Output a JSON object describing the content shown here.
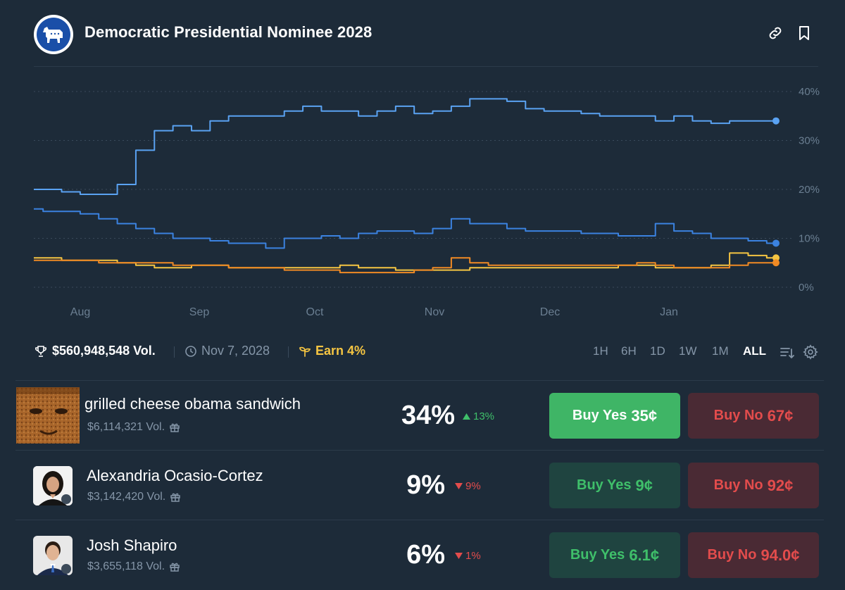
{
  "header": {
    "title": "Democratic Presidential Nominee 2028"
  },
  "chart_data": {
    "type": "line",
    "x_labels": [
      "Aug",
      "Sep",
      "Oct",
      "Nov",
      "Dec",
      "Jan"
    ],
    "y_ticks": [
      "40%",
      "30%",
      "20%",
      "10%",
      "0%"
    ],
    "ylim": [
      0,
      40
    ],
    "grid": true,
    "series": [
      {
        "color": "#5aa2f2",
        "values": [
          20,
          20,
          19.5,
          19,
          19,
          21,
          28,
          32,
          33,
          32,
          34,
          35,
          35,
          35,
          36,
          37,
          36,
          36,
          35,
          36,
          37,
          35.5,
          36,
          37,
          38.5,
          38.5,
          38,
          36.5,
          36,
          36,
          35.5,
          35,
          35,
          35,
          34,
          35,
          34,
          33.5,
          34,
          34,
          34
        ],
        "last": 34
      },
      {
        "color": "#3b82e0",
        "values": [
          16,
          15.5,
          15.5,
          15,
          14,
          13,
          12,
          11,
          10,
          10,
          9.5,
          9,
          9,
          8,
          10,
          10,
          10.5,
          10,
          11,
          11.5,
          11.5,
          11,
          12,
          14,
          13,
          13,
          12,
          11.5,
          11.5,
          11.5,
          11,
          11,
          10.5,
          10.5,
          13,
          11.5,
          11,
          10,
          10,
          9.5,
          9
        ],
        "last": 9
      },
      {
        "color": "#f5c542",
        "values": [
          6,
          6,
          5.5,
          5.5,
          5.5,
          5,
          4.5,
          4,
          4,
          4.5,
          4.5,
          4,
          4,
          4,
          4,
          4,
          4,
          4.5,
          4,
          4,
          3.5,
          3.5,
          3.5,
          3.5,
          4,
          4,
          4,
          4,
          4,
          4,
          4,
          4,
          4.5,
          4.5,
          4,
          4,
          4,
          4.5,
          7,
          6.5,
          6
        ],
        "last": 6
      },
      {
        "color": "#f08a24",
        "values": [
          5.5,
          5.5,
          5.5,
          5.5,
          5,
          5,
          5,
          5,
          4.5,
          4.5,
          4.5,
          4,
          4,
          4,
          3.5,
          3.5,
          3.5,
          3,
          3,
          3,
          3,
          3.5,
          4,
          6,
          5,
          4.5,
          4.5,
          4.5,
          4.5,
          4.5,
          4.5,
          4.5,
          4.5,
          5,
          4.5,
          4,
          4,
          4,
          4.5,
          5,
          5
        ],
        "last": 5
      }
    ]
  },
  "infobar": {
    "volume": "$560,948,548 Vol.",
    "date": "Nov 7, 2028",
    "earn": "Earn 4%",
    "timeframes": [
      "1H",
      "6H",
      "1D",
      "1W",
      "1M",
      "ALL"
    ],
    "active_timeframe": "ALL"
  },
  "candidates": [
    {
      "name": "grilled cheese obama sandwich",
      "volume": "$6,114,321 Vol.",
      "percent": "34%",
      "change": "13%",
      "direction": "up",
      "yes_label": "Buy Yes",
      "yes_price": "35¢",
      "no_label": "Buy No",
      "no_price": "67¢"
    },
    {
      "name": "Alexandria Ocasio-Cortez",
      "volume": "$3,142,420 Vol.",
      "percent": "9%",
      "change": "9%",
      "direction": "down",
      "yes_label": "Buy Yes",
      "yes_price": "9¢",
      "no_label": "Buy No",
      "no_price": "92¢"
    },
    {
      "name": "Josh Shapiro",
      "volume": "$3,655,118 Vol.",
      "percent": "6%",
      "change": "1%",
      "direction": "down",
      "yes_label": "Buy Yes",
      "yes_price": "6.1¢",
      "no_label": "Buy No",
      "no_price": "94.0¢"
    }
  ],
  "colors": {
    "background": "#1d2b39",
    "yes_active": "#3fb566",
    "yes": "#1f4440",
    "no": "#4a2a34",
    "up": "#3fbf6a",
    "down": "#e34c4c"
  }
}
